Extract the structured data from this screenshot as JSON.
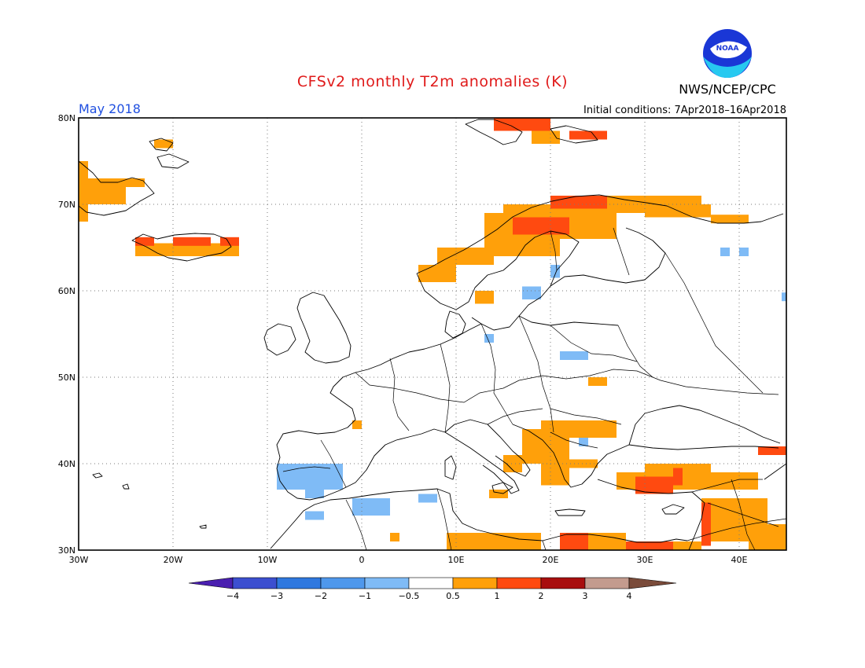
{
  "header": {
    "title": "CFSv2 monthly T2m anomalies (K)",
    "month": "May 2018",
    "initial_conditions": "Initial conditions: 7Apr2018–16Apr2018",
    "agency": "NWS/NCEP/CPC",
    "logo_text": "NOAA"
  },
  "map": {
    "lon_range": [
      -30,
      45
    ],
    "lat_range": [
      30,
      80
    ],
    "lat_labels": [
      "80N",
      "70N",
      "60N",
      "50N",
      "40N",
      "30N"
    ],
    "lon_labels": [
      "30W",
      "20W",
      "10W",
      "0",
      "10E",
      "20E",
      "30E",
      "40E"
    ]
  },
  "colorbar": {
    "labels": [
      "−4",
      "−3",
      "−2",
      "−1",
      "−0.5",
      "0.5",
      "1",
      "2",
      "3",
      "4"
    ],
    "colors": [
      "#4a1fb0",
      "#3c4fd0",
      "#2f78df",
      "#4f98ec",
      "#7fbbf6",
      "#ffffff",
      "#ffa00a",
      "#ff4a10",
      "#a80e0e",
      "#c39b8e",
      "#7a4b3a"
    ]
  },
  "colors": {
    "c_0_5_1": "#ffa00a",
    "c_1_2": "#ff4a10",
    "c_n05_n1": "#7fbbf6",
    "c_n1_n2": "#4f98ec"
  },
  "anomaly_cells": [
    {
      "lon": -30,
      "lat": 68,
      "w": 1,
      "h": 7,
      "c": "c_0_5_1"
    },
    {
      "lon": -29,
      "lat": 70,
      "w": 4,
      "h": 3,
      "c": "c_0_5_1"
    },
    {
      "lon": -26,
      "lat": 72,
      "w": 3,
      "h": 1,
      "c": "c_0_5_1"
    },
    {
      "lon": -22,
      "lat": 76.5,
      "w": 2,
      "h": 1,
      "c": "c_0_5_1"
    },
    {
      "lon": -24,
      "lat": 64,
      "w": 11,
      "h": 1.5,
      "c": "c_0_5_1"
    },
    {
      "lon": -24,
      "lat": 65.2,
      "w": 2,
      "h": 1,
      "c": "c_1_2"
    },
    {
      "lon": -20,
      "lat": 65.2,
      "w": 4,
      "h": 1,
      "c": "c_1_2"
    },
    {
      "lon": -15,
      "lat": 65.2,
      "w": 2,
      "h": 1,
      "c": "c_1_2"
    },
    {
      "lon": 14,
      "lat": 78.5,
      "w": 6,
      "h": 1.5,
      "c": "c_1_2"
    },
    {
      "lon": 18,
      "lat": 77,
      "w": 3,
      "h": 1.5,
      "c": "c_0_5_1"
    },
    {
      "lon": 22,
      "lat": 77.5,
      "w": 4,
      "h": 1,
      "c": "c_1_2"
    },
    {
      "lon": 6,
      "lat": 61,
      "w": 4,
      "h": 2,
      "c": "c_0_5_1"
    },
    {
      "lon": 8,
      "lat": 63,
      "w": 6,
      "h": 2,
      "c": "c_0_5_1"
    },
    {
      "lon": 13,
      "lat": 64,
      "w": 8,
      "h": 5,
      "c": "c_0_5_1"
    },
    {
      "lon": 15,
      "lat": 66,
      "w": 12,
      "h": 4,
      "c": "c_0_5_1"
    },
    {
      "lon": 16,
      "lat": 66.5,
      "w": 6,
      "h": 2,
      "c": "c_1_2"
    },
    {
      "lon": 20,
      "lat": 69.5,
      "w": 10,
      "h": 1.5,
      "c": "c_1_2"
    },
    {
      "lon": 26,
      "lat": 69,
      "w": 10,
      "h": 2,
      "c": "c_0_5_1"
    },
    {
      "lon": 30,
      "lat": 68.5,
      "w": 7,
      "h": 1.5,
      "c": "c_0_5_1"
    },
    {
      "lon": 37,
      "lat": 67.8,
      "w": 4,
      "h": 1,
      "c": "c_0_5_1"
    },
    {
      "lon": 12,
      "lat": 58.5,
      "w": 2,
      "h": 1.5,
      "c": "c_0_5_1"
    },
    {
      "lon": 17,
      "lat": 59,
      "w": 2,
      "h": 1.5,
      "c": "c_n05_n1"
    },
    {
      "lon": 20,
      "lat": 61.5,
      "w": 1,
      "h": 1.5,
      "c": "c_n05_n1"
    },
    {
      "lon": 38,
      "lat": 64,
      "w": 1,
      "h": 1,
      "c": "c_n05_n1"
    },
    {
      "lon": 40,
      "lat": 64,
      "w": 1,
      "h": 1,
      "c": "c_n05_n1"
    },
    {
      "lon": 13,
      "lat": 54,
      "w": 1,
      "h": 1,
      "c": "c_n05_n1"
    },
    {
      "lon": 21,
      "lat": 52,
      "w": 3,
      "h": 1,
      "c": "c_n05_n1"
    },
    {
      "lon": 24,
      "lat": 49,
      "w": 2,
      "h": 1,
      "c": "c_0_5_1"
    },
    {
      "lon": 19,
      "lat": 43,
      "w": 8,
      "h": 2,
      "c": "c_0_5_1"
    },
    {
      "lon": 17,
      "lat": 40,
      "w": 5,
      "h": 4,
      "c": "c_0_5_1"
    },
    {
      "lon": 19,
      "lat": 37.5,
      "w": 3,
      "h": 3,
      "c": "c_0_5_1"
    },
    {
      "lon": 22,
      "lat": 39.5,
      "w": 3,
      "h": 1,
      "c": "c_0_5_1"
    },
    {
      "lon": 15,
      "lat": 39,
      "w": 2,
      "h": 2,
      "c": "c_0_5_1"
    },
    {
      "lon": 13.5,
      "lat": 36,
      "w": 2,
      "h": 1,
      "c": "c_0_5_1"
    },
    {
      "lon": -1,
      "lat": 44,
      "w": 1,
      "h": 1,
      "c": "c_0_5_1"
    },
    {
      "lon": 27,
      "lat": 37,
      "w": 15,
      "h": 2,
      "c": "c_0_5_1"
    },
    {
      "lon": 30,
      "lat": 39,
      "w": 7,
      "h": 1,
      "c": "c_0_5_1"
    },
    {
      "lon": 29,
      "lat": 36.5,
      "w": 4,
      "h": 2,
      "c": "c_1_2"
    },
    {
      "lon": 33,
      "lat": 37.5,
      "w": 1,
      "h": 2,
      "c": "c_1_2"
    },
    {
      "lon": 36,
      "lat": 31,
      "w": 7,
      "h": 5,
      "c": "c_0_5_1"
    },
    {
      "lon": 36,
      "lat": 30.5,
      "w": 1,
      "h": 5,
      "c": "c_1_2"
    },
    {
      "lon": 41,
      "lat": 30,
      "w": 4,
      "h": 3,
      "c": "c_0_5_1"
    },
    {
      "lon": 42,
      "lat": 41,
      "w": 3,
      "h": 1,
      "c": "c_1_2"
    },
    {
      "lon": 9,
      "lat": 30,
      "w": 10,
      "h": 2,
      "c": "c_0_5_1"
    },
    {
      "lon": 21,
      "lat": 30,
      "w": 7,
      "h": 2,
      "c": "c_0_5_1"
    },
    {
      "lon": 21,
      "lat": 30,
      "w": 3,
      "h": 2,
      "c": "c_1_2"
    },
    {
      "lon": 28,
      "lat": 30,
      "w": 5,
      "h": 1,
      "c": "c_1_2"
    },
    {
      "lon": 33,
      "lat": 30,
      "w": 3,
      "h": 1,
      "c": "c_0_5_1"
    },
    {
      "lon": 3,
      "lat": 31,
      "w": 1,
      "h": 1,
      "c": "c_0_5_1"
    },
    {
      "lon": -9,
      "lat": 37,
      "w": 7,
      "h": 3,
      "c": "c_n05_n1"
    },
    {
      "lon": -6,
      "lat": 36,
      "w": 2,
      "h": 1.5,
      "c": "c_n05_n1"
    },
    {
      "lon": -6,
      "lat": 33.5,
      "w": 2,
      "h": 1,
      "c": "c_n05_n1"
    },
    {
      "lon": -1,
      "lat": 34,
      "w": 4,
      "h": 2,
      "c": "c_n05_n1"
    },
    {
      "lon": 6,
      "lat": 35.5,
      "w": 2,
      "h": 1,
      "c": "c_n05_n1"
    },
    {
      "lon": 23,
      "lat": 42,
      "w": 1,
      "h": 1,
      "c": "c_n05_n1"
    },
    {
      "lon": 44.5,
      "lat": 58.8,
      "w": 0.5,
      "h": 1,
      "c": "c_n05_n1"
    }
  ]
}
